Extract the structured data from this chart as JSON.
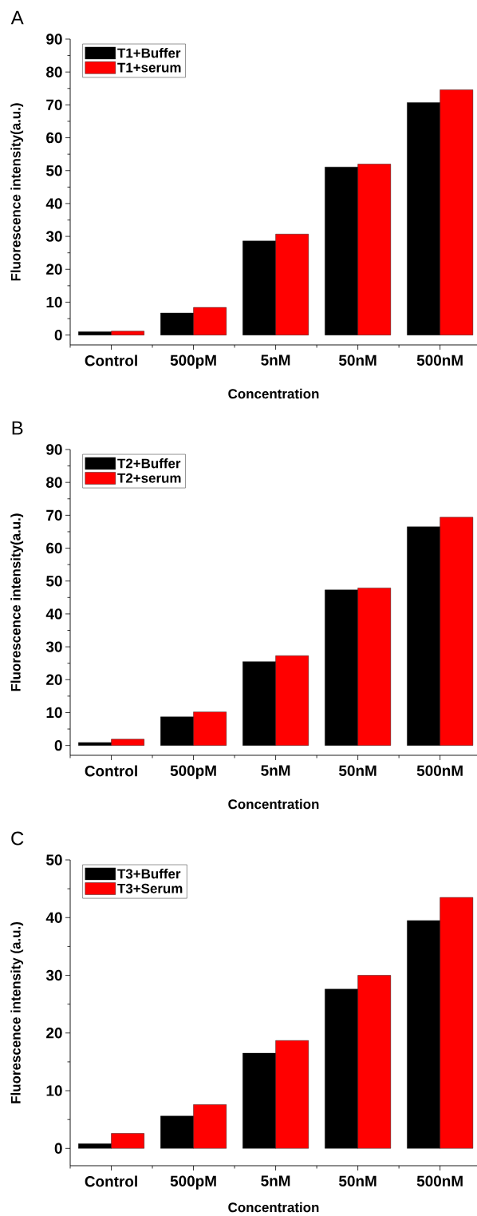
{
  "chart_data": [
    {
      "type": "bar",
      "title": "A",
      "xlabel": "Concentration",
      "ylabel": "Fluorescence intensity(a.u.)",
      "categories": [
        "Control",
        "500pM",
        "5nM",
        "50nM",
        "500nM"
      ],
      "series": [
        {
          "name": "T1+Buffer",
          "color": "#000000",
          "values": [
            1.0,
            6.7,
            28.6,
            51.1,
            70.7
          ]
        },
        {
          "name": "T1+serum",
          "color": "#ff0000",
          "values": [
            1.2,
            8.4,
            30.7,
            52.0,
            74.6
          ]
        }
      ],
      "ylim": [
        -3,
        90
      ],
      "yticks": [
        0,
        10,
        20,
        30,
        40,
        50,
        60,
        70,
        80,
        90
      ],
      "legend": "top left"
    },
    {
      "type": "bar",
      "title": "B",
      "xlabel": "Concentration",
      "ylabel": "Fluorescence intensity(a.u.)",
      "categories": [
        "Control",
        "500pM",
        "5nM",
        "50nM",
        "500nM"
      ],
      "series": [
        {
          "name": "T2+Buffer",
          "color": "#000000",
          "values": [
            0.9,
            8.7,
            25.5,
            47.3,
            66.5
          ]
        },
        {
          "name": "T2+serum",
          "color": "#ff0000",
          "values": [
            1.9,
            10.2,
            27.3,
            47.9,
            69.4
          ]
        }
      ],
      "ylim": [
        -3,
        90
      ],
      "yticks": [
        0,
        10,
        20,
        30,
        40,
        50,
        60,
        70,
        80,
        90
      ],
      "legend": "top left"
    },
    {
      "type": "bar",
      "title": "C",
      "xlabel": "Concentration",
      "ylabel": "Fluorescence intensity (a.u.)",
      "categories": [
        "Control",
        "500pM",
        "5nM",
        "50nM",
        "500nM"
      ],
      "series": [
        {
          "name": "T3+Buffer",
          "color": "#000000",
          "values": [
            0.8,
            5.6,
            16.5,
            27.6,
            39.5
          ]
        },
        {
          "name": "T3+Serum",
          "color": "#ff0000",
          "values": [
            2.6,
            7.6,
            18.7,
            30.0,
            43.5
          ]
        }
      ],
      "ylim": [
        -3,
        50
      ],
      "yticks": [
        0,
        10,
        20,
        30,
        40,
        50
      ],
      "legend": "top left"
    }
  ]
}
